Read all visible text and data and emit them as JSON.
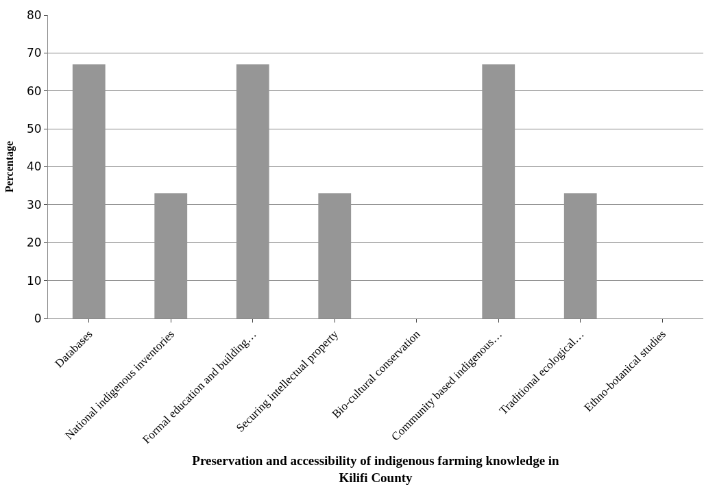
{
  "chart_data": {
    "type": "bar",
    "xlabel": "Preservation and accessibility of indigenous farming knowledge in\nKilifi County",
    "ylabel": "Percentage",
    "categories": [
      "Databases",
      "National indigenous inventories",
      "Formal education and building…",
      "Securing intellectual property",
      "Bio-cultural conservation",
      "Community based indigenous…",
      "Traditional ecological…",
      "Ethno-botanical studies"
    ],
    "values": [
      67,
      33,
      67,
      33,
      0,
      67,
      33,
      0
    ],
    "color": "#969696",
    "ylim": [
      0,
      80
    ],
    "yticks": [
      0,
      10,
      20,
      30,
      40,
      50,
      60,
      70,
      80
    ],
    "grid": "y"
  }
}
